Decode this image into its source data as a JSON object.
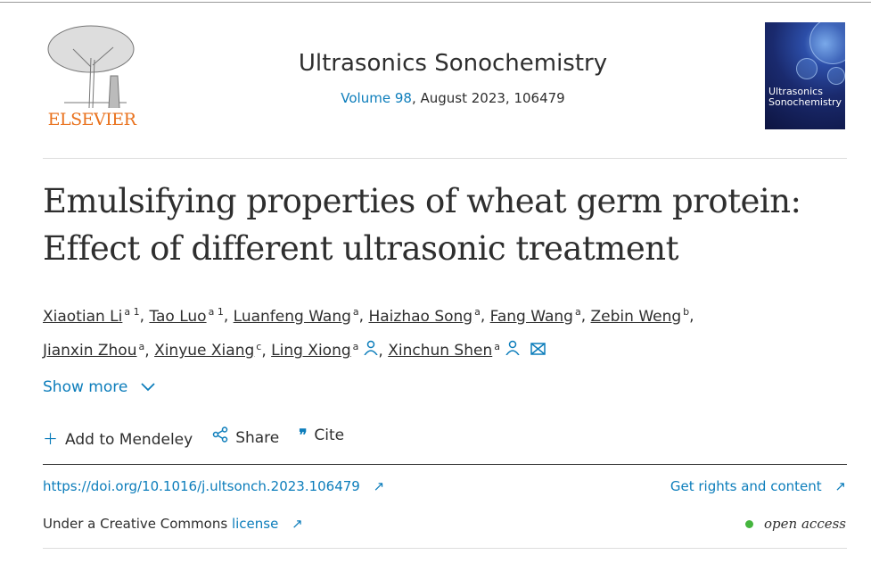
{
  "header": {
    "publisher_logo_text": "ELSEVIER",
    "journal_title": "Ultrasonics Sonochemistry",
    "volume_link": "Volume 98",
    "volume_rest": ", August 2023, 106479",
    "cover_text": "Ultrasonics Sonochemistry"
  },
  "article": {
    "title": "Emulsifying properties of wheat germ protein: Effect of different ultrasonic treatment"
  },
  "authors": [
    {
      "name": "Xiaotian Li",
      "sup": "a 1"
    },
    {
      "name": "Tao Luo",
      "sup": "a 1"
    },
    {
      "name": "Luanfeng Wang",
      "sup": "a"
    },
    {
      "name": "Haizhao Song",
      "sup": "a"
    },
    {
      "name": "Fang Wang",
      "sup": "a"
    },
    {
      "name": "Zebin Weng",
      "sup": "b"
    },
    {
      "name": "Jianxin Zhou",
      "sup": "a"
    },
    {
      "name": "Xinyue Xiang",
      "sup": "c"
    },
    {
      "name": "Ling Xiong",
      "sup": "a"
    },
    {
      "name": "Xinchun Shen",
      "sup": "a"
    }
  ],
  "show_more": "Show more",
  "actions": {
    "mendeley": "Add to Mendeley",
    "share": "Share",
    "cite": "Cite"
  },
  "links": {
    "doi": "https://doi.org/10.1016/j.ultsonch.2023.106479",
    "rights": "Get rights and content",
    "license_prefix": "Under a Creative Commons ",
    "license_link": "license",
    "open_access": "open access"
  },
  "colors": {
    "link": "#0c7dbb",
    "publisher": "#e9711c",
    "open_access_dot": "#45b53e"
  }
}
